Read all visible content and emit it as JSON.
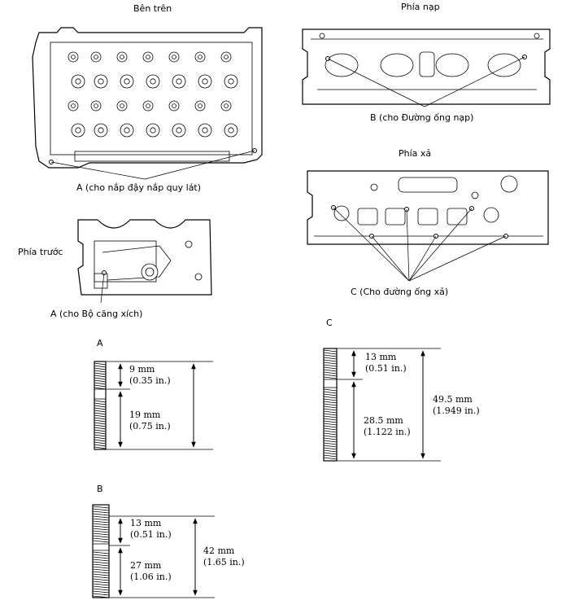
{
  "views": {
    "top": "Bên trên",
    "intake": "Phía nạp",
    "exhaust": "Phía xả",
    "front": "Phía trước"
  },
  "callouts": {
    "top": "A (cho nắp đậy nắp quy lát)",
    "intake": "B (cho Đường ống nạp)",
    "exhaust": "C (Cho đường ống xả)",
    "front": "A (cho Bộ căng xích)"
  },
  "studs": {
    "A": {
      "label": "A",
      "short_mm": "9 mm",
      "short_in": "(0.35 in.)",
      "long_mm": "19 mm",
      "long_in": "(0.75 in.)"
    },
    "B": {
      "label": "B",
      "short_mm": "13 mm",
      "short_in": "(0.51 in.)",
      "long_mm": "27 mm",
      "long_in": "(1.06 in.)",
      "total_mm": "42 mm",
      "total_in": "(1.65 in.)"
    },
    "C": {
      "label": "C",
      "short_mm": "13 mm",
      "short_in": "(0.51 in.)",
      "long_mm": "28.5 mm",
      "long_in": "(1.122 in.)",
      "total_mm": "49.5 mm",
      "total_in": "(1.949 in.)"
    }
  }
}
